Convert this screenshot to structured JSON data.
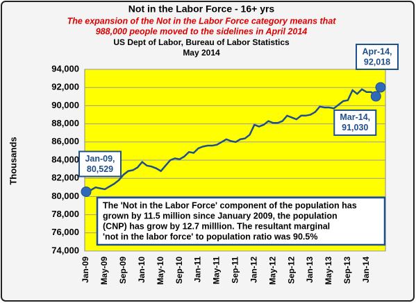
{
  "chart_data": {
    "type": "line",
    "title": "Not in the Labor Force - 16+ yrs",
    "subtitle": [
      "The expansion of the Not in the Labor Force category means that",
      "988,000 people moved to the sidelines in April 2014"
    ],
    "source": [
      "US Dept of Labor, Bureau of Labor Statistics",
      "May 2014"
    ],
    "y_label": "Thousands",
    "categories": [
      "Jan-09",
      null,
      null,
      null,
      "May-09",
      null,
      null,
      null,
      "Sep-09",
      null,
      null,
      null,
      "Jan-10",
      null,
      null,
      null,
      "May-10",
      null,
      null,
      null,
      "Sep-10",
      null,
      null,
      null,
      "Jan-11",
      null,
      null,
      null,
      "May-11",
      null,
      null,
      null,
      "Sep-11",
      null,
      null,
      null,
      "Jan-12",
      null,
      null,
      null,
      "May-12",
      null,
      null,
      null,
      "Sep-12",
      null,
      null,
      null,
      "Jan-13",
      null,
      null,
      null,
      "May-13",
      null,
      null,
      null,
      "Sep-13",
      null,
      null,
      null,
      "Jan-14",
      null,
      null,
      null
    ],
    "series": [
      {
        "name": "Not in the Labor Force",
        "color": "#1f4e8c",
        "values": [
          80529,
          80700,
          81000,
          80900,
          80800,
          81100,
          81400,
          81800,
          82400,
          82800,
          82900,
          83200,
          83800,
          83400,
          83300,
          83100,
          82800,
          83400,
          84000,
          84200,
          84100,
          84400,
          84900,
          84800,
          85300,
          85500,
          85600,
          85600,
          85700,
          86000,
          86300,
          86100,
          86000,
          86300,
          86400,
          86800,
          87900,
          87700,
          87900,
          88300,
          88100,
          88100,
          88300,
          88900,
          88700,
          88500,
          88900,
          88900,
          89000,
          89300,
          89900,
          89800,
          89800,
          89700,
          90100,
          90500,
          90600,
          91700,
          91300,
          91800,
          91500,
          91500,
          91030,
          92018
        ],
        "value_labels": [
          "80,529",
          null,
          null,
          null,
          null,
          null,
          null,
          null,
          null,
          null,
          null,
          null,
          null,
          null,
          null,
          null,
          null,
          null,
          null,
          null,
          null,
          null,
          null,
          null,
          null,
          null,
          null,
          null,
          null,
          null,
          null,
          null,
          null,
          null,
          null,
          null,
          null,
          null,
          null,
          null,
          null,
          null,
          null,
          null,
          null,
          null,
          null,
          null,
          null,
          null,
          null,
          null,
          null,
          null,
          null,
          null,
          null,
          null,
          null,
          null,
          null,
          null,
          "91,030",
          "92,018"
        ]
      }
    ],
    "callouts": [
      "Jan-09,",
      "Mar-14,",
      "Apr-14,"
    ],
    "note": [
      "The 'Not in the Labor Force' component of the population has",
      "grown by 11.5 million since January  2009, the  population",
      "(CNP) has grow by 12.7 milllion.  The resultant  marginal",
      "'not in the labor force' to population ratio was 90.5%"
    ],
    "ylim": [
      74000,
      94000
    ],
    "yticks": [
      {
        "value": 74000,
        "label": "74,000"
      },
      {
        "value": 76000,
        "label": "76,000"
      },
      {
        "value": 78000,
        "label": "78,000"
      },
      {
        "value": 80000,
        "label": "80,000"
      },
      {
        "value": 82000,
        "label": "82,000"
      },
      {
        "value": 84000,
        "label": "84,000"
      },
      {
        "value": 86000,
        "label": "86,000"
      },
      {
        "value": 88000,
        "label": "88,000"
      },
      {
        "value": 90000,
        "label": "90,000"
      },
      {
        "value": 92000,
        "label": "92,000"
      },
      {
        "value": 94000,
        "label": "94,000"
      }
    ],
    "grid": true,
    "plot_color": "#ffff00"
  }
}
